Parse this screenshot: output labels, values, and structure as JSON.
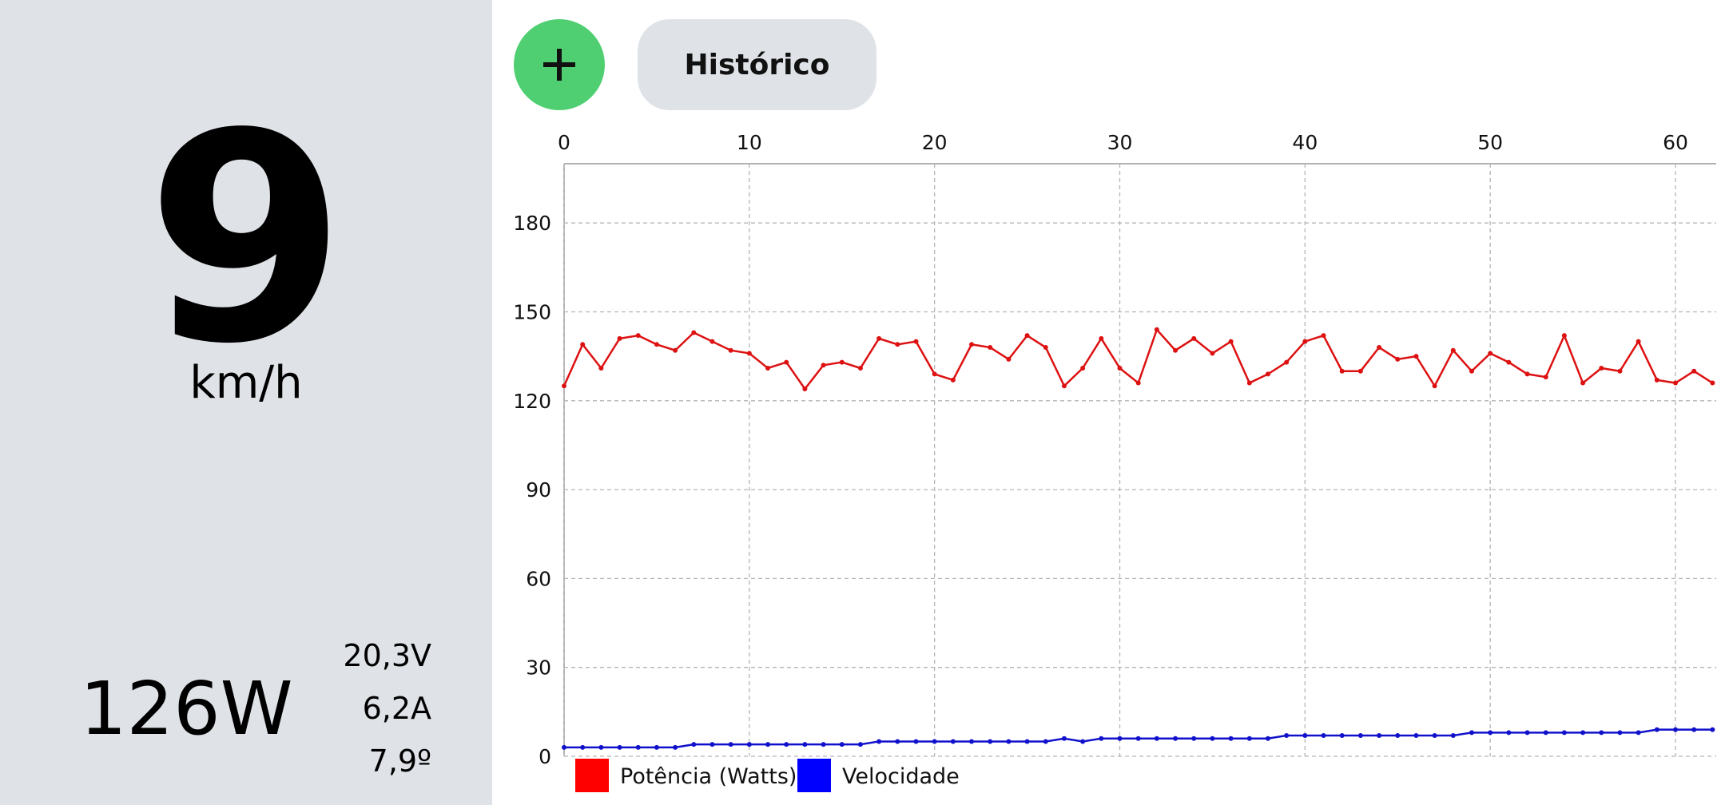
{
  "dashboard": {
    "speed_value": "9",
    "speed_unit": "km/h",
    "power": "126W",
    "voltage": "20,3V",
    "current": "6,2A",
    "temperature": "7,9º"
  },
  "toolbar": {
    "add_icon": "plus-icon",
    "history_label": "Histórico",
    "add_color": "#4fcf72"
  },
  "chart_data": {
    "type": "line",
    "title": "",
    "xlabel": "",
    "ylabel": "",
    "x_axis_position": "top",
    "xlim": [
      0,
      62.2
    ],
    "ylim": [
      0,
      200
    ],
    "x_ticks": [
      0,
      10,
      20,
      30,
      40,
      50,
      60
    ],
    "y_ticks": [
      0,
      30,
      60,
      90,
      120,
      150,
      180
    ],
    "grid": true,
    "legend_position": "bottom-left",
    "series": [
      {
        "name": "Potência (Watts)",
        "color": "#dd1111",
        "legend_color": "#ff0000",
        "values": [
          125,
          139,
          131,
          141,
          142,
          139,
          137,
          143,
          140,
          137,
          136,
          131,
          133,
          124,
          132,
          133,
          131,
          141,
          139,
          140,
          129,
          127,
          139,
          138,
          134,
          142,
          138,
          125,
          131,
          141,
          131,
          126,
          144,
          137,
          141,
          136,
          140,
          126,
          129,
          133,
          140,
          142,
          130,
          130,
          138,
          134,
          135,
          125,
          137,
          130,
          136,
          133,
          129,
          128,
          142,
          126,
          131,
          130,
          140,
          127,
          126,
          130,
          126
        ]
      },
      {
        "name": "Velocidade",
        "color": "#1111cc",
        "legend_color": "#0000ff",
        "values": [
          3,
          3,
          3,
          3,
          3,
          3,
          3,
          4,
          4,
          4,
          4,
          4,
          4,
          4,
          4,
          4,
          4,
          5,
          5,
          5,
          5,
          5,
          5,
          5,
          5,
          5,
          5,
          6,
          5,
          6,
          6,
          6,
          6,
          6,
          6,
          6,
          6,
          6,
          6,
          7,
          7,
          7,
          7,
          7,
          7,
          7,
          7,
          7,
          7,
          8,
          8,
          8,
          8,
          8,
          8,
          8,
          8,
          8,
          8,
          9,
          9,
          9,
          9
        ]
      }
    ]
  }
}
